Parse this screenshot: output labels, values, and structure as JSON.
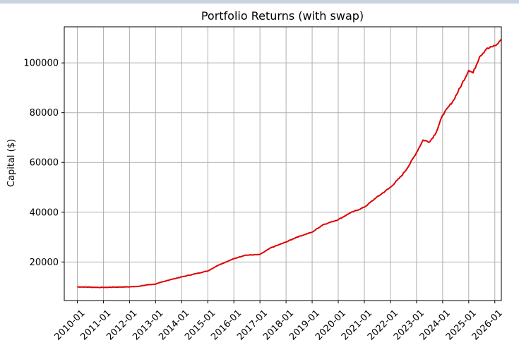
{
  "window": {
    "accent_bar_color": "#c9d3df"
  },
  "chart_data": {
    "type": "line",
    "title": "Portfolio Returns (with swap)",
    "xlabel": "",
    "ylabel": "Capital ($)",
    "grid": true,
    "legend": "none",
    "x_ticks": [
      "2010-01",
      "2011-01",
      "2012-01",
      "2013-01",
      "2014-01",
      "2015-01",
      "2016-01",
      "2017-01",
      "2018-01",
      "2019-01",
      "2020-01",
      "2021-01",
      "2022-01",
      "2023-01",
      "2024-01",
      "2025-01",
      "2026-01"
    ],
    "y_ticks": [
      20000,
      40000,
      60000,
      80000,
      100000
    ],
    "xlim": [
      "2009-07",
      "2026-04"
    ],
    "ylim": [
      4500,
      114500
    ],
    "series": [
      {
        "color": "#e00000",
        "points": [
          [
            "2010-01",
            10000
          ],
          [
            "2010-06",
            9900
          ],
          [
            "2011-01",
            9750
          ],
          [
            "2011-06",
            9900
          ],
          [
            "2012-01",
            10000
          ],
          [
            "2012-06",
            10300
          ],
          [
            "2012-09",
            10800
          ],
          [
            "2013-01",
            11100
          ],
          [
            "2013-06",
            12500
          ],
          [
            "2014-01",
            14000
          ],
          [
            "2014-06",
            15000
          ],
          [
            "2015-01",
            16400
          ],
          [
            "2015-06",
            18800
          ],
          [
            "2016-01",
            21300
          ],
          [
            "2016-06",
            22700
          ],
          [
            "2017-01",
            23000
          ],
          [
            "2017-06",
            25700
          ],
          [
            "2018-01",
            28000
          ],
          [
            "2018-06",
            30000
          ],
          [
            "2019-01",
            32000
          ],
          [
            "2019-06",
            35000
          ],
          [
            "2020-01",
            37000
          ],
          [
            "2020-06",
            39500
          ],
          [
            "2021-01",
            42000
          ],
          [
            "2021-06",
            45500
          ],
          [
            "2022-01",
            50000
          ],
          [
            "2022-06",
            54500
          ],
          [
            "2022-09",
            58000
          ],
          [
            "2023-01",
            64000
          ],
          [
            "2023-04",
            69000
          ],
          [
            "2023-07",
            68200
          ],
          [
            "2023-10",
            72000
          ],
          [
            "2024-01",
            79000
          ],
          [
            "2024-06",
            85000
          ],
          [
            "2024-09",
            90000
          ],
          [
            "2025-01",
            97000
          ],
          [
            "2025-03",
            96000
          ],
          [
            "2025-06",
            102500
          ],
          [
            "2025-09",
            105500
          ],
          [
            "2025-12",
            106500
          ],
          [
            "2026-02",
            107500
          ],
          [
            "2026-04",
            109500
          ]
        ]
      }
    ]
  }
}
